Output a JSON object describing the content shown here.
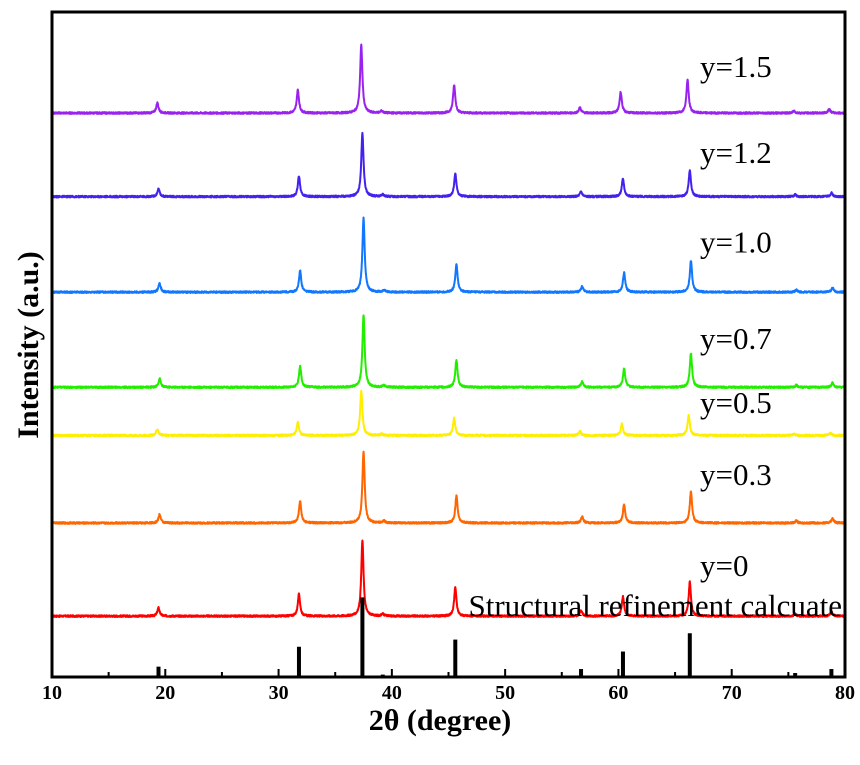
{
  "chart_data": {
    "type": "line",
    "xlabel": "2θ (degree)",
    "ylabel": "Intensity (a.u.)",
    "xlim": [
      10,
      80
    ],
    "xticks": [
      10,
      20,
      30,
      40,
      50,
      60,
      70,
      80
    ],
    "y_ticks_shown": false,
    "grid": false,
    "peak_width_deg": 0.12,
    "reference": {
      "name": "Structural refinement calcuate",
      "sticks": [
        {
          "x": 19.4,
          "h": 0.13
        },
        {
          "x": 31.8,
          "h": 0.38
        },
        {
          "x": 37.4,
          "h": 1.0
        },
        {
          "x": 39.2,
          "h": 0.03
        },
        {
          "x": 45.6,
          "h": 0.47
        },
        {
          "x": 56.7,
          "h": 0.1
        },
        {
          "x": 60.4,
          "h": 0.32
        },
        {
          "x": 66.3,
          "h": 0.55
        },
        {
          "x": 70.0,
          "h": 0.02
        },
        {
          "x": 75.6,
          "h": 0.05
        },
        {
          "x": 78.8,
          "h": 0.1
        }
      ]
    },
    "series": [
      {
        "name": "y=0",
        "color": "#ff0000",
        "baseline": 0.765,
        "scale": 0.95,
        "peaks": [
          {
            "x": 19.4,
            "h": 0.11
          },
          {
            "x": 31.8,
            "h": 0.29
          },
          {
            "x": 37.4,
            "h": 1.0
          },
          {
            "x": 39.2,
            "h": 0.03
          },
          {
            "x": 45.6,
            "h": 0.38
          },
          {
            "x": 56.7,
            "h": 0.08
          },
          {
            "x": 60.4,
            "h": 0.26
          },
          {
            "x": 66.3,
            "h": 0.45
          },
          {
            "x": 75.6,
            "h": 0.03
          },
          {
            "x": 78.8,
            "h": 0.06
          }
        ]
      },
      {
        "name": "y=0.3",
        "color": "#ff6600",
        "baseline": 1.935,
        "scale": 0.9,
        "peaks": [
          {
            "x": 19.5,
            "h": 0.12
          },
          {
            "x": 31.9,
            "h": 0.3
          },
          {
            "x": 37.5,
            "h": 1.0
          },
          {
            "x": 39.3,
            "h": 0.03
          },
          {
            "x": 45.7,
            "h": 0.38
          },
          {
            "x": 56.8,
            "h": 0.09
          },
          {
            "x": 60.5,
            "h": 0.26
          },
          {
            "x": 66.4,
            "h": 0.44
          },
          {
            "x": 75.7,
            "h": 0.03
          },
          {
            "x": 78.9,
            "h": 0.06
          }
        ]
      },
      {
        "name": "y=0.5",
        "color": "#ffee00",
        "baseline": 3.035,
        "scale": 0.55,
        "peaks": [
          {
            "x": 19.3,
            "h": 0.14
          },
          {
            "x": 31.7,
            "h": 0.3
          },
          {
            "x": 37.3,
            "h": 1.0
          },
          {
            "x": 39.1,
            "h": 0.03
          },
          {
            "x": 45.5,
            "h": 0.39
          },
          {
            "x": 56.6,
            "h": 0.09
          },
          {
            "x": 60.3,
            "h": 0.26
          },
          {
            "x": 66.2,
            "h": 0.46
          },
          {
            "x": 75.5,
            "h": 0.03
          },
          {
            "x": 78.7,
            "h": 0.06
          }
        ]
      },
      {
        "name": "y=0.7",
        "color": "#22ee00",
        "baseline": 3.64,
        "scale": 0.9,
        "peaks": [
          {
            "x": 19.5,
            "h": 0.12
          },
          {
            "x": 31.9,
            "h": 0.29
          },
          {
            "x": 37.5,
            "h": 1.0
          },
          {
            "x": 39.3,
            "h": 0.03
          },
          {
            "x": 45.7,
            "h": 0.38
          },
          {
            "x": 56.8,
            "h": 0.08
          },
          {
            "x": 60.5,
            "h": 0.26
          },
          {
            "x": 66.4,
            "h": 0.47
          },
          {
            "x": 75.7,
            "h": 0.03
          },
          {
            "x": 78.9,
            "h": 0.06
          }
        ]
      },
      {
        "name": "y=1.0",
        "color": "#1177ff",
        "baseline": 4.835,
        "scale": 0.93,
        "peaks": [
          {
            "x": 19.5,
            "h": 0.12
          },
          {
            "x": 31.9,
            "h": 0.29
          },
          {
            "x": 37.5,
            "h": 1.0
          },
          {
            "x": 39.3,
            "h": 0.03
          },
          {
            "x": 45.7,
            "h": 0.38
          },
          {
            "x": 56.8,
            "h": 0.08
          },
          {
            "x": 60.5,
            "h": 0.26
          },
          {
            "x": 66.4,
            "h": 0.42
          },
          {
            "x": 75.7,
            "h": 0.03
          },
          {
            "x": 78.9,
            "h": 0.06
          }
        ]
      },
      {
        "name": "y=1.2",
        "color": "#4422ee",
        "baseline": 6.035,
        "scale": 0.8,
        "peaks": [
          {
            "x": 19.4,
            "h": 0.12
          },
          {
            "x": 31.8,
            "h": 0.32
          },
          {
            "x": 37.4,
            "h": 1.0
          },
          {
            "x": 39.2,
            "h": 0.03
          },
          {
            "x": 45.6,
            "h": 0.36
          },
          {
            "x": 56.7,
            "h": 0.08
          },
          {
            "x": 60.4,
            "h": 0.28
          },
          {
            "x": 66.3,
            "h": 0.41
          },
          {
            "x": 75.6,
            "h": 0.03
          },
          {
            "x": 78.8,
            "h": 0.06
          }
        ]
      },
      {
        "name": "y=1.5",
        "color": "#9922ee",
        "baseline": 7.085,
        "scale": 0.85,
        "peaks": [
          {
            "x": 19.3,
            "h": 0.15
          },
          {
            "x": 31.7,
            "h": 0.34
          },
          {
            "x": 37.3,
            "h": 1.0
          },
          {
            "x": 39.1,
            "h": 0.03
          },
          {
            "x": 45.5,
            "h": 0.41
          },
          {
            "x": 56.6,
            "h": 0.08
          },
          {
            "x": 60.2,
            "h": 0.31
          },
          {
            "x": 66.1,
            "h": 0.49
          },
          {
            "x": 75.5,
            "h": 0.03
          },
          {
            "x": 78.6,
            "h": 0.06
          }
        ]
      }
    ]
  }
}
